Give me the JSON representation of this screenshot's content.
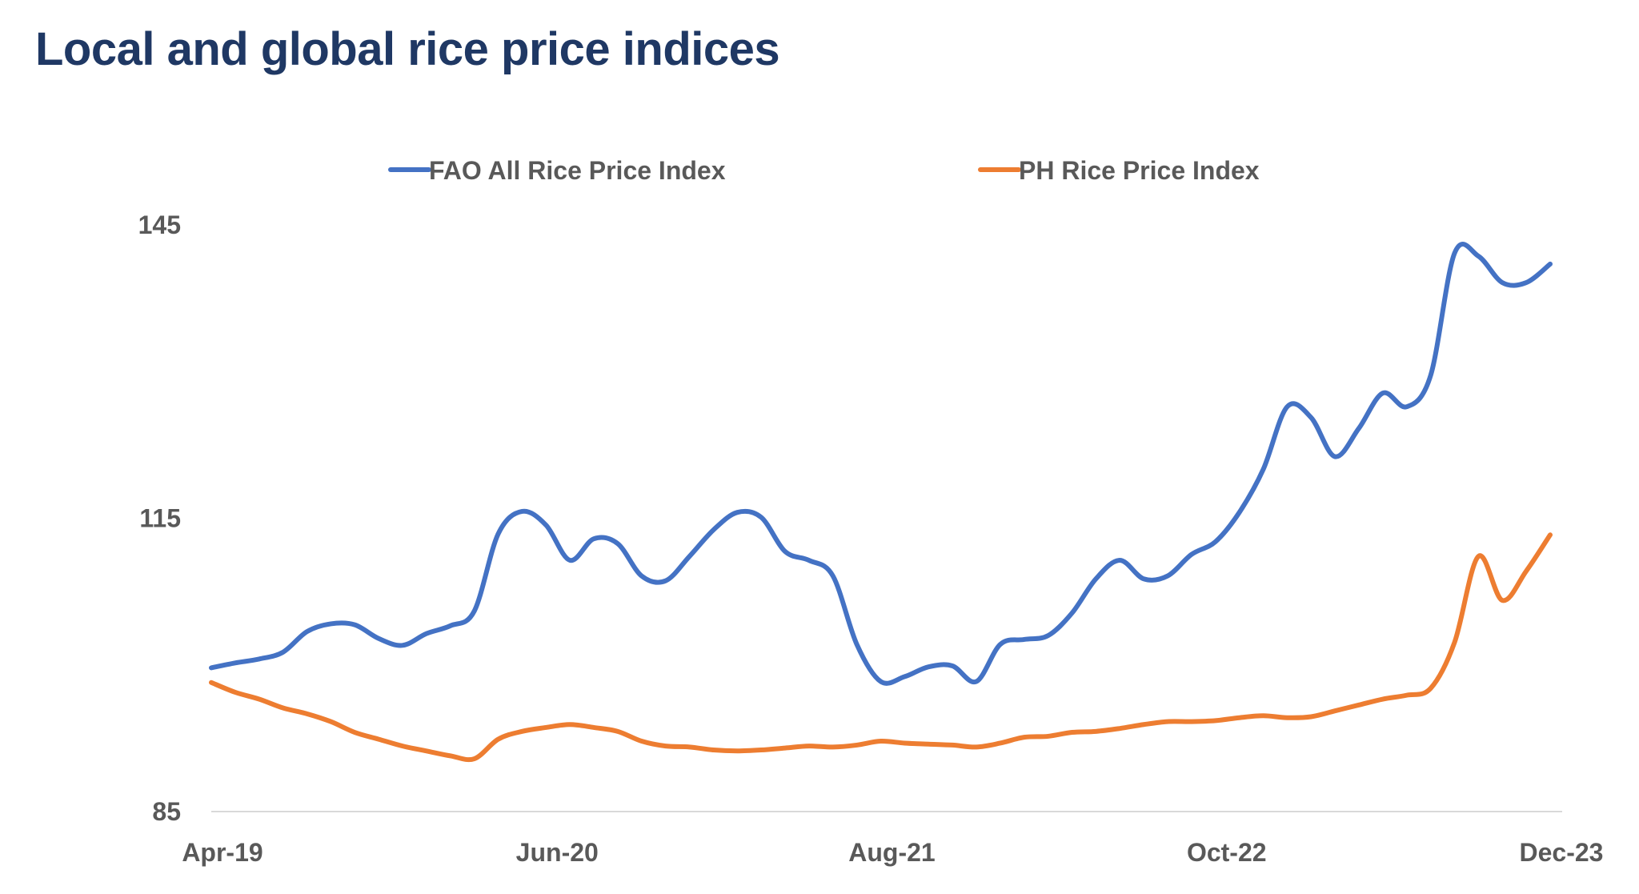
{
  "chart_data": {
    "type": "line",
    "title": "Local and global rice price indices",
    "xlabel": "",
    "ylabel": "",
    "ylim": [
      85,
      145
    ],
    "yticks": [
      "85",
      "115",
      "145"
    ],
    "x_start": "Apr-19",
    "x_end": "Dec-23",
    "xticks": [
      {
        "label": "Apr-19",
        "index": 0
      },
      {
        "label": "Jun-20",
        "index": 14
      },
      {
        "label": "Aug-21",
        "index": 28
      },
      {
        "label": "Oct-22",
        "index": 42
      },
      {
        "label": "Dec-23",
        "index": 56
      }
    ],
    "grid": false,
    "legend_position": "top",
    "series": [
      {
        "name": "FAO All Rice Price Index",
        "color": "#4472c4",
        "values": [
          99.7,
          100.2,
          100.6,
          101.3,
          103.4,
          104.2,
          104.1,
          102.7,
          102.0,
          103.2,
          104.0,
          105.5,
          113.4,
          115.7,
          114.3,
          110.7,
          112.9,
          112.4,
          109.1,
          108.6,
          111.1,
          113.8,
          115.6,
          115.1,
          111.6,
          110.7,
          109.1,
          102.1,
          98.3,
          98.8,
          99.8,
          99.9,
          98.3,
          102.1,
          102.6,
          103.0,
          105.3,
          108.8,
          110.7,
          108.8,
          109.1,
          111.3,
          112.6,
          115.6,
          120.0,
          126.4,
          125.3,
          121.3,
          124.2,
          127.8,
          126.4,
          129.6,
          142.1,
          141.8,
          139.1,
          139.1,
          141.0
        ]
      },
      {
        "name": "PH Rice Price Index",
        "color": "#ed7d31",
        "values": [
          98.2,
          97.2,
          96.5,
          95.6,
          95.0,
          94.2,
          93.1,
          92.4,
          91.7,
          91.2,
          90.7,
          90.4,
          92.4,
          93.2,
          93.6,
          93.9,
          93.6,
          93.2,
          92.2,
          91.7,
          91.6,
          91.3,
          91.2,
          91.3,
          91.5,
          91.7,
          91.6,
          91.8,
          92.2,
          92.0,
          91.9,
          91.8,
          91.6,
          92.0,
          92.6,
          92.7,
          93.1,
          93.2,
          93.5,
          93.9,
          94.2,
          94.2,
          94.3,
          94.6,
          94.8,
          94.6,
          94.7,
          95.3,
          95.9,
          96.5,
          96.9,
          97.6,
          102.3,
          111.1,
          106.6,
          109.6,
          113.3
        ]
      }
    ]
  }
}
